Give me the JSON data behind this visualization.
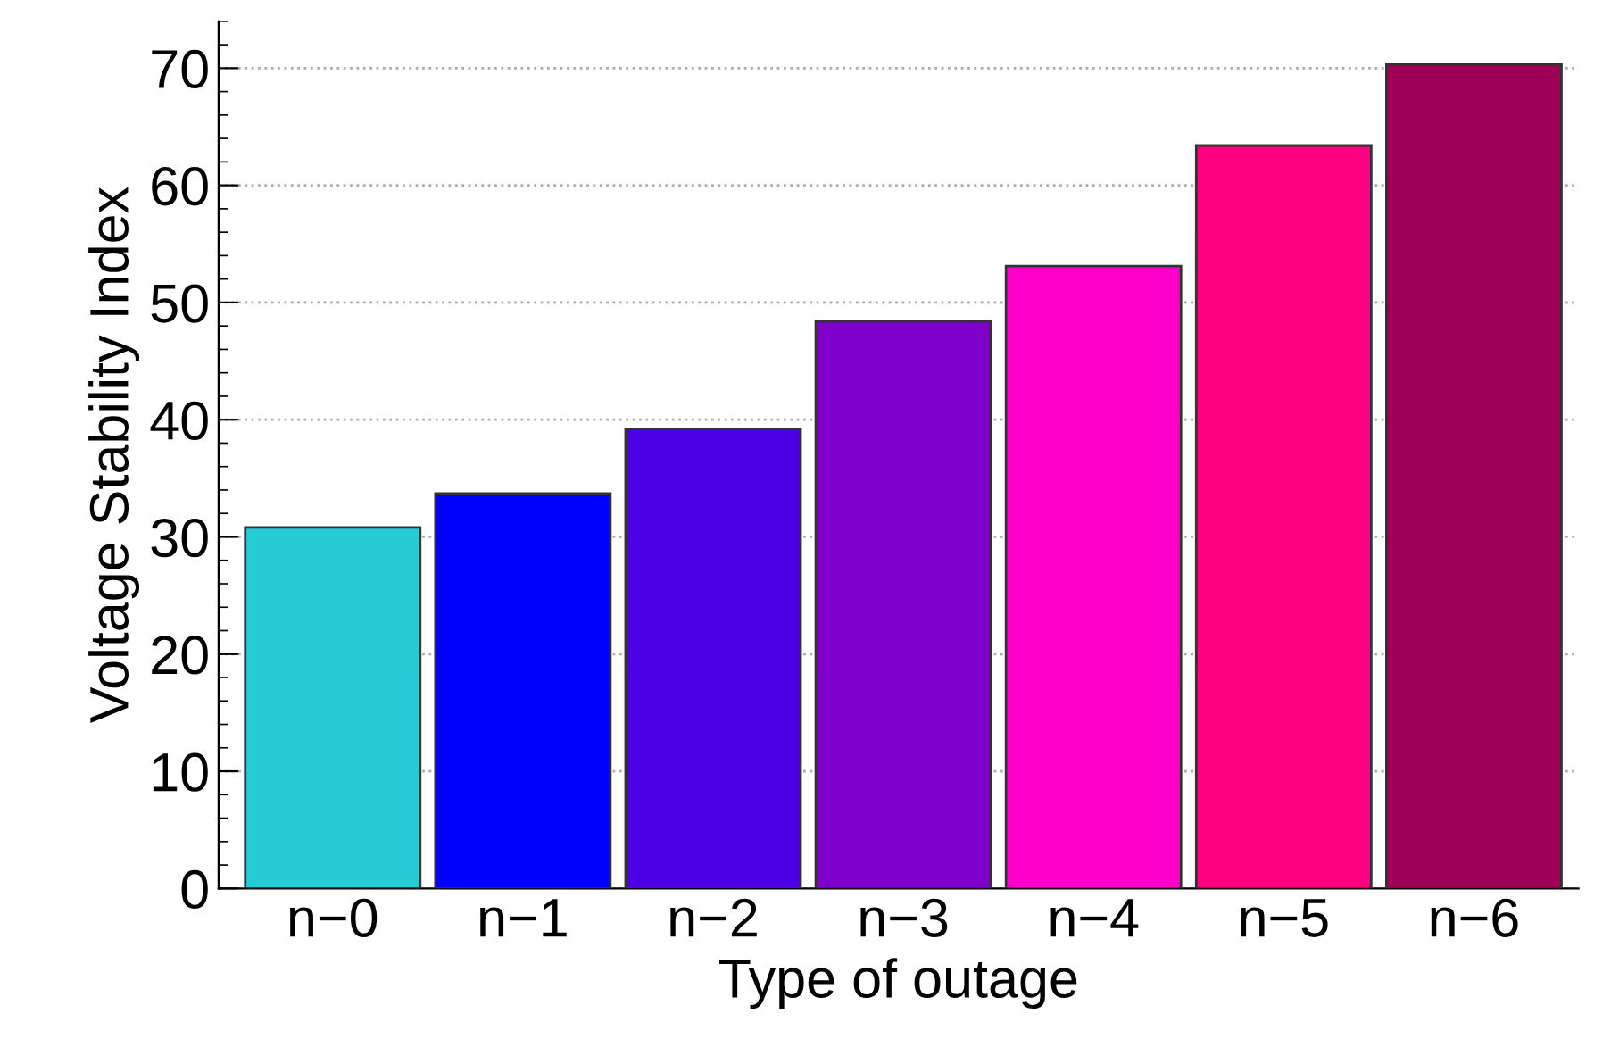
{
  "chart_data": {
    "type": "bar",
    "xlabel": "Type of outage",
    "ylabel": "Voltage Stability Index",
    "categories": [
      "n−0",
      "n−1",
      "n−2",
      "n−3",
      "n−4",
      "n−5",
      "n−6"
    ],
    "values": [
      30.8,
      33.7,
      39.2,
      48.4,
      53.1,
      63.4,
      70.3
    ],
    "colors": [
      "#27cbd6",
      "#0000fe",
      "#4d00e6",
      "#8000cc",
      "#ff00cc",
      "#ff0080",
      "#9e0058"
    ],
    "ylim": [
      0,
      74
    ],
    "yticks": [
      0,
      10,
      20,
      30,
      40,
      50,
      60,
      70
    ],
    "grid": "y"
  }
}
